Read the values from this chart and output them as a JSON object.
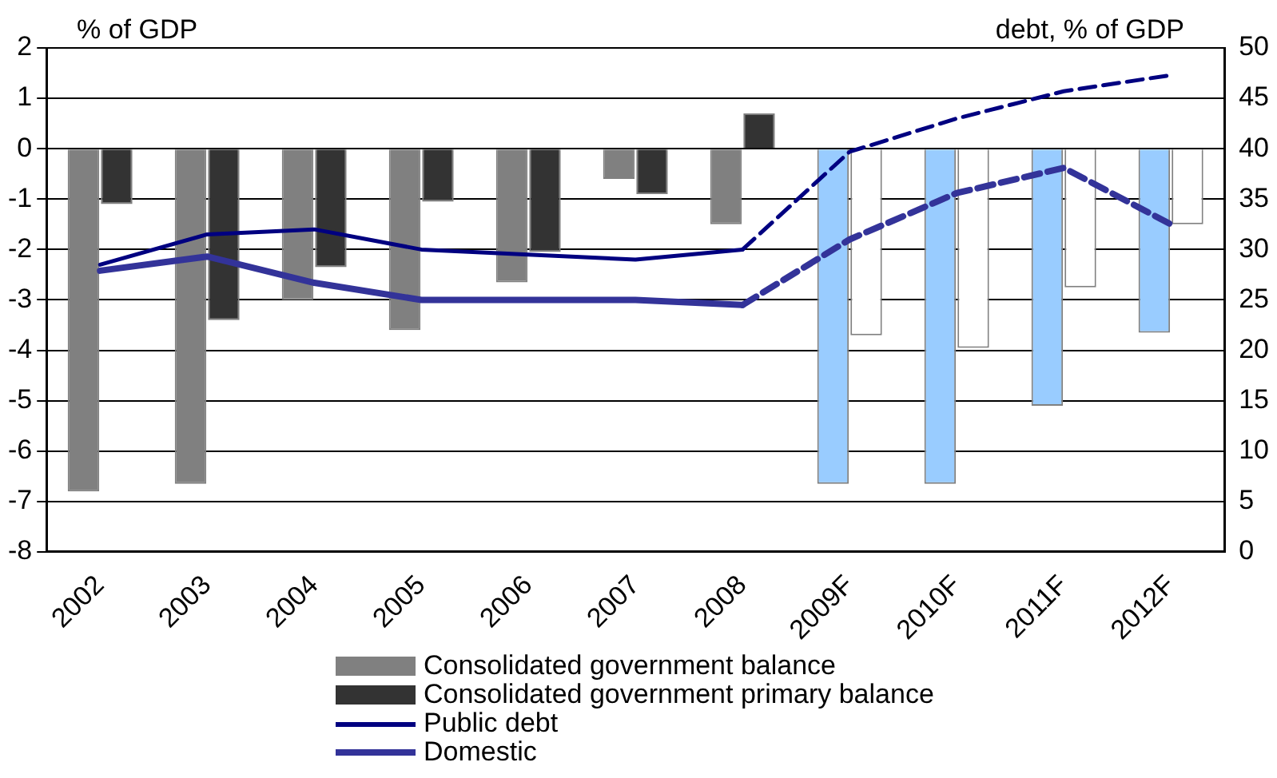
{
  "chart_data": {
    "type": "bar",
    "ylabel": "% of GDP",
    "y2label": "debt, % of GDP",
    "categories": [
      "2002",
      "2003",
      "2004",
      "2005",
      "2006",
      "2007",
      "2008",
      "2009F",
      "2010F",
      "2011F",
      "2012F"
    ],
    "series": [
      {
        "name": "Consolidated government balance",
        "color": "#808080",
        "colors": [
          "#808080",
          "#808080",
          "#808080",
          "#808080",
          "#808080",
          "#808080",
          "#808080",
          "#99ccff",
          "#99ccff",
          "#99ccff",
          "#99ccff"
        ],
        "values": [
          -6.8,
          -6.65,
          -3.0,
          -3.6,
          -2.65,
          -0.6,
          -1.5,
          -6.65,
          -6.65,
          -5.1,
          -3.65
        ]
      },
      {
        "name": "Consolidated government primary balance",
        "color": "#333333",
        "colors": [
          "#333333",
          "#333333",
          "#333333",
          "#333333",
          "#333333",
          "#333333",
          "#333333",
          "#ffffff",
          "#ffffff",
          "#ffffff",
          "#ffffff"
        ],
        "values": [
          -1.1,
          -3.4,
          -2.35,
          -1.05,
          -2.05,
          -0.9,
          0.7,
          -3.7,
          -3.95,
          -2.75,
          -1.5
        ]
      },
      {
        "name": "Public debt",
        "type": "line",
        "axis": "y2",
        "color": "#000080",
        "line_style": "solid",
        "values": [
          28.5,
          31.5,
          32,
          30,
          29.5,
          29,
          30,
          null,
          null,
          null,
          null
        ]
      },
      {
        "type": "line",
        "axis": "y2",
        "color": "#000080",
        "line_style": "dashed",
        "values": [
          null,
          null,
          null,
          null,
          null,
          null,
          30,
          39.7,
          43,
          45.7,
          47.3
        ]
      },
      {
        "name": "Domestic",
        "type": "line",
        "axis": "y2",
        "color": "#333399",
        "line_style": "solid",
        "values": [
          27.9,
          29.3,
          26.7,
          25,
          25,
          25,
          24.5,
          null,
          null,
          null,
          null
        ]
      },
      {
        "type": "line",
        "axis": "y2",
        "color": "#333399",
        "line_style": "dashed",
        "values": [
          null,
          null,
          null,
          null,
          null,
          null,
          24.5,
          31,
          35.6,
          38.1,
          32.5
        ]
      }
    ],
    "ylim": [
      -8,
      2
    ],
    "yticks": [
      -8,
      -7,
      -6,
      -5,
      -4,
      -3,
      -2,
      -1,
      0,
      1,
      2
    ],
    "y2lim": [
      0,
      50
    ],
    "y2ticks": [
      0,
      5,
      10,
      15,
      20,
      25,
      30,
      35,
      40,
      45,
      50
    ],
    "grid": "y",
    "legend": "bottom",
    "marker": "none"
  }
}
